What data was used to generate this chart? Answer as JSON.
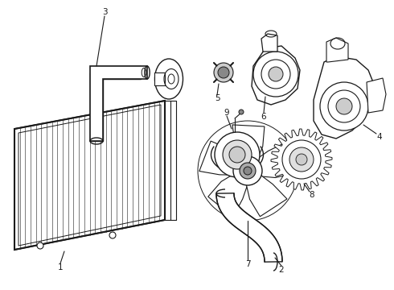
{
  "background_color": "#ffffff",
  "line_color": "#1a1a1a",
  "line_width": 1.0,
  "fig_width": 4.9,
  "fig_height": 3.6,
  "dpi": 100,
  "label_fontsize": 7.5
}
